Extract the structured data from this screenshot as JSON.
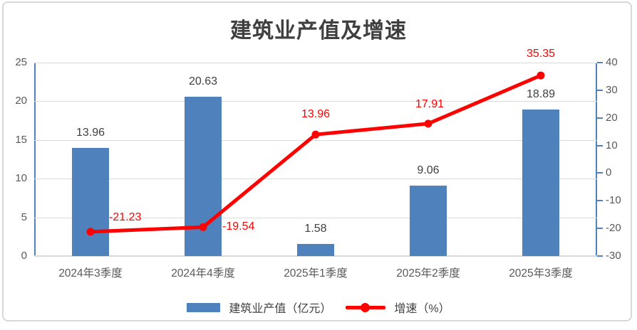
{
  "title": "建筑业产值及增速",
  "chart_data": {
    "type": "bar",
    "subtype": "bar+line combo, dual axis",
    "title": "建筑业产值及增速",
    "categories": [
      "2024年3季度",
      "2024年4季度",
      "2025年1季度",
      "2025年2季度",
      "2025年3季度"
    ],
    "series": [
      {
        "name": "建筑业产值（亿元）",
        "type": "bar",
        "axis": "left",
        "color": "#4f81bd",
        "values": [
          13.96,
          20.63,
          1.58,
          9.06,
          18.89
        ]
      },
      {
        "name": "增速（%）",
        "type": "line",
        "axis": "right",
        "color": "#ff0000",
        "values": [
          -21.23,
          -19.54,
          13.96,
          17.91,
          35.35
        ]
      }
    ],
    "left_axis": {
      "min": 0,
      "max": 25,
      "step": 5,
      "ticks": [
        0,
        5,
        10,
        15,
        20,
        25
      ]
    },
    "right_axis": {
      "min": -30,
      "max": 40,
      "step": 10,
      "ticks": [
        -30,
        -20,
        -10,
        0,
        10,
        20,
        30,
        40
      ]
    },
    "grid": true,
    "legend_position": "bottom",
    "colors": {
      "bar": "#4f81bd",
      "line": "#ff0000",
      "gridline": "#d9d9d9",
      "axis_line": "#4f81bd",
      "bar_label": "#404040",
      "line_label": "#ff0000",
      "tick_label": "#595959",
      "title": "#3f3f3f"
    }
  },
  "legend": {
    "bar_label": "建筑业产值（亿元）",
    "line_label": "增速（%）"
  }
}
